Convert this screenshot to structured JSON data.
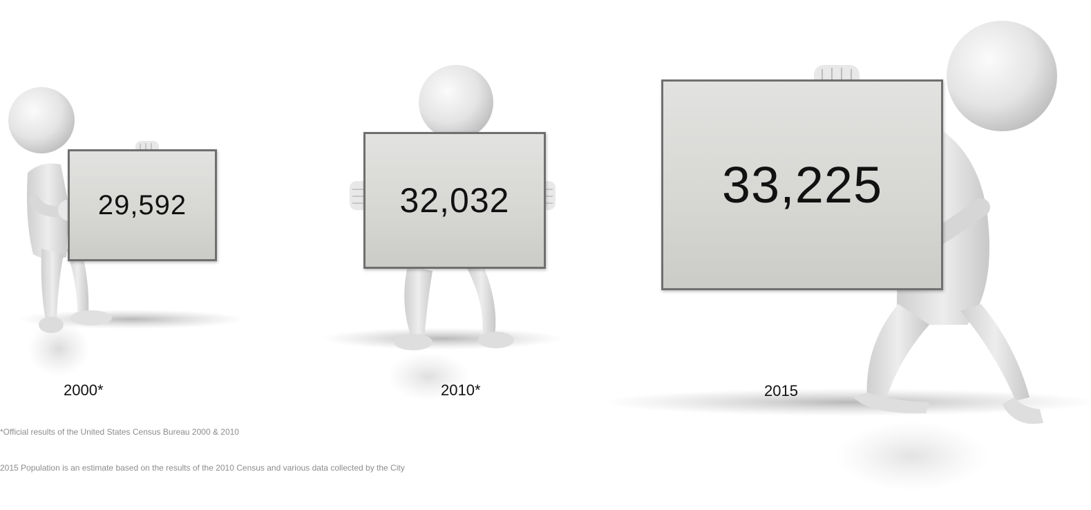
{
  "figures": [
    {
      "year_label": "2000*",
      "population": "29,592"
    },
    {
      "year_label": "2010*",
      "population": "32,032"
    },
    {
      "year_label": "2015",
      "population": "33,225"
    }
  ],
  "footnotes": {
    "census_note": "*Official results of the United States Census Bureau 2000 & 2010",
    "estimate_note": "2015 Population  is an estimate based on  the results of the  2010  Census and various data collected  by the City"
  },
  "colors": {
    "sign_border": "#6f6f6f",
    "figure_body": "#e6e6e6",
    "text": "#111111",
    "footnote_text": "#8c8c8c"
  }
}
